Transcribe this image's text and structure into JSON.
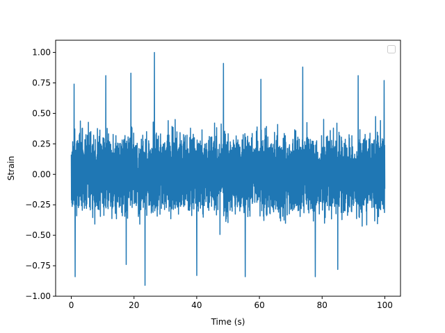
{
  "chart_data": {
    "type": "line",
    "title": "",
    "xlabel": "Time (s)",
    "ylabel": "Strain",
    "xlim": [
      -5,
      105
    ],
    "ylim": [
      -1.0,
      1.1
    ],
    "xticks": [
      0,
      20,
      40,
      60,
      80,
      100
    ],
    "xtick_labels": [
      "0",
      "20",
      "40",
      "60",
      "80",
      "100"
    ],
    "yticks": [
      -1.0,
      -0.75,
      -0.5,
      -0.25,
      0.0,
      0.25,
      0.5,
      0.75,
      1.0
    ],
    "ytick_labels": [
      "−1.00",
      "−0.75",
      "−0.50",
      "−0.25",
      "0.00",
      "0.25",
      "0.50",
      "0.75",
      "1.00"
    ],
    "grid": false,
    "legend": {
      "placement": "upper right",
      "entries": []
    },
    "series": [
      {
        "color": "#1f77b4",
        "x_range": [
          0,
          100
        ],
        "num_points": 1800,
        "description": "dense noise-like signal",
        "typical_range": [
          -0.5,
          0.5
        ],
        "peaks": [
          {
            "x": 26.5,
            "y": 1.0
          },
          {
            "x": 23.5,
            "y": -0.91
          },
          {
            "x": 48.5,
            "y": 0.91
          },
          {
            "x": 73.8,
            "y": 0.88
          },
          {
            "x": 1.2,
            "y": -0.84
          },
          {
            "x": 55.5,
            "y": -0.84
          },
          {
            "x": 77.8,
            "y": -0.84
          },
          {
            "x": 19.0,
            "y": 0.83
          },
          {
            "x": 0.9,
            "y": 0.74
          },
          {
            "x": 99.8,
            "y": 0.77
          },
          {
            "x": 91.5,
            "y": 0.81
          },
          {
            "x": 60.5,
            "y": 0.78
          },
          {
            "x": 40.0,
            "y": -0.83
          },
          {
            "x": 17.5,
            "y": -0.74
          },
          {
            "x": 11.0,
            "y": 0.81
          },
          {
            "x": 85.0,
            "y": -0.78
          }
        ]
      }
    ]
  }
}
